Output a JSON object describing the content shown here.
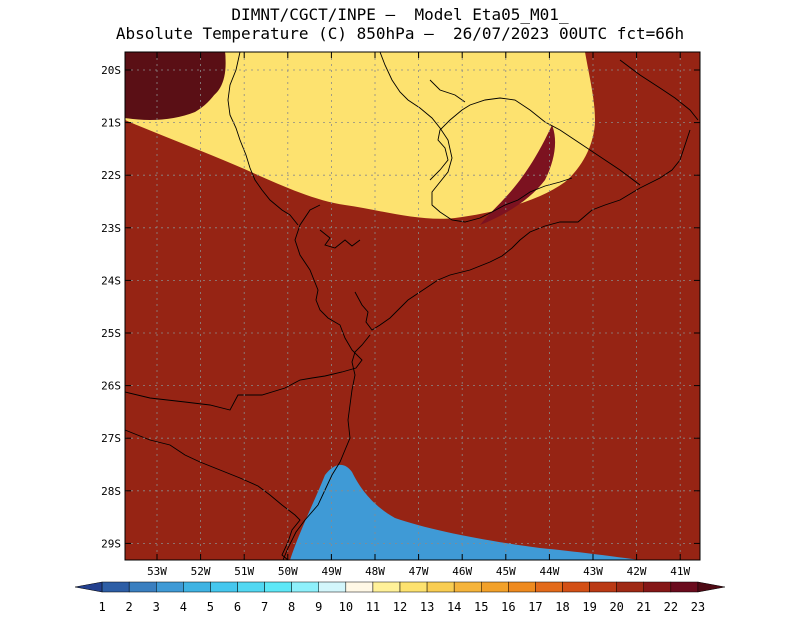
{
  "title": {
    "line1": "DIMNT/CGCT/INPE –  Model Eta05_M01_",
    "line2": "Absolute Temperature (C) 850hPa –  26/07/2023 00UTC fct=66h"
  },
  "map": {
    "lat_labels": [
      "20S",
      "21S",
      "22S",
      "23S",
      "24S",
      "25S",
      "26S",
      "27S",
      "28S",
      "29S"
    ],
    "lon_labels": [
      "53W",
      "52W",
      "51W",
      "50W",
      "49W",
      "48W",
      "47W",
      "46W",
      "45W",
      "44W",
      "43W",
      "42W",
      "41W"
    ],
    "bands": [
      {
        "v": 0,
        "c": "#38c8ff"
      },
      {
        "v": 1,
        "c": "#7ee8f8"
      },
      {
        "v": 2,
        "c": "#d6f4fb"
      },
      {
        "v": 3,
        "c": "#fff7e0"
      },
      {
        "v": 4,
        "c": "#fff08a"
      },
      {
        "v": 5,
        "c": "#fbd960"
      },
      {
        "v": 6,
        "c": "#f5bb3d"
      },
      {
        "v": 7,
        "c": "#f29e22"
      },
      {
        "v": 8,
        "c": "#e8771a"
      },
      {
        "v": 9,
        "c": "#d65a14"
      },
      {
        "v": 10,
        "c": "#b63a13"
      },
      {
        "v": 11,
        "c": "#962414"
      },
      {
        "v": 12,
        "c": "#7c1220"
      },
      {
        "v": 13,
        "c": "#5a0f15"
      }
    ]
  },
  "colorbar": {
    "labels": [
      "1",
      "2",
      "3",
      "4",
      "5",
      "6",
      "7",
      "8",
      "9",
      "10",
      "11",
      "12",
      "13",
      "14",
      "15",
      "16",
      "17",
      "18",
      "19",
      "20",
      "21",
      "22",
      "23"
    ],
    "colors": [
      "#23408e",
      "#2d5ea6",
      "#3a7fc0",
      "#3f9ad6",
      "#3fb3e3",
      "#45c7ee",
      "#52d8f2",
      "#5ee8f7",
      "#8ef0fb",
      "#d3f6fb",
      "#fff8e6",
      "#fff199",
      "#fde26f",
      "#f9cd52",
      "#f5b43b",
      "#f2a12a",
      "#ee8a1f",
      "#e36a1a",
      "#d35016",
      "#ba3914",
      "#9f2914",
      "#851717",
      "#6b0b1d",
      "#4e0a14"
    ]
  }
}
